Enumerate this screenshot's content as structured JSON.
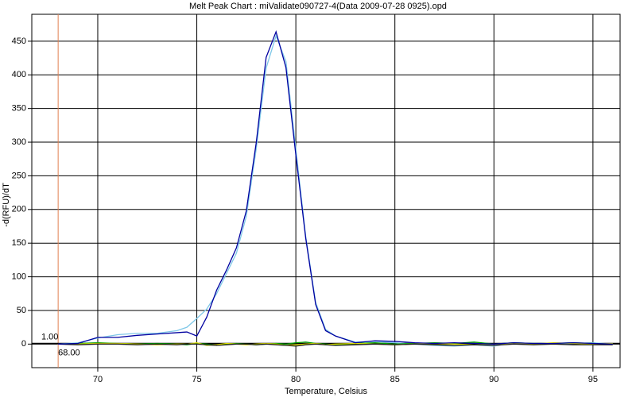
{
  "chart_data": {
    "type": "line",
    "title": "Melt Peak Chart : miValidate090727-4(Data 2009-07-28 0925).opd",
    "x_label": "Temperature, Celsius",
    "y_label": "-d(RFU)/dT",
    "x": [
      68,
      69,
      70,
      71,
      72,
      73,
      74,
      74.5,
      75,
      75.5,
      76,
      76.5,
      77,
      77.5,
      78,
      78.5,
      79,
      79.5,
      80,
      80.5,
      81,
      81.5,
      82,
      83,
      84,
      85,
      86,
      87,
      88,
      89,
      90,
      91,
      92,
      93,
      94,
      95,
      96
    ],
    "series": [
      {
        "color": "#7fc8e8",
        "values": [
          0,
          2,
          9,
          14,
          16,
          16,
          20,
          25,
          38,
          52,
          75,
          105,
          135,
          190,
          290,
          410,
          458,
          420,
          290,
          160,
          62,
          22,
          12,
          3,
          4,
          2,
          0,
          -2,
          -3,
          -1,
          -3,
          2,
          1,
          0,
          1,
          2,
          0
        ]
      },
      {
        "color": "#00a000",
        "values": [
          0,
          1,
          2,
          1,
          0,
          1,
          0,
          -1,
          1,
          0,
          -2,
          0,
          1,
          0,
          -1,
          0,
          1,
          0,
          2,
          3,
          1,
          0,
          -1,
          1,
          2,
          0,
          1,
          2,
          1,
          3,
          0,
          2,
          1,
          1,
          2,
          1,
          0
        ]
      },
      {
        "color": "#e0e000",
        "values": [
          0,
          0,
          1,
          1,
          0,
          -1,
          0,
          0,
          2,
          -2,
          -1,
          1,
          0,
          -1,
          0,
          1,
          0,
          -2,
          -1,
          0,
          1,
          -1,
          0,
          1,
          0,
          -1,
          0,
          1,
          0,
          -1,
          0,
          1,
          0,
          2,
          1,
          0,
          1
        ]
      },
      {
        "color": "#202020",
        "values": [
          0,
          -1,
          0,
          0,
          -1,
          0,
          -1,
          0,
          0,
          -1,
          -2,
          -1,
          0,
          0,
          -1,
          0,
          -1,
          -2,
          -3,
          -1,
          0,
          -1,
          -2,
          -1,
          0,
          -1,
          0,
          -1,
          -2,
          -1,
          -2,
          0,
          -1,
          0,
          -1,
          -1,
          -1
        ]
      },
      {
        "color": "#0000a0",
        "values": [
          0,
          1,
          10,
          10,
          13,
          15,
          17,
          18,
          12,
          40,
          80,
          110,
          143,
          198,
          299,
          426,
          464,
          411,
          281,
          157,
          59,
          20,
          12,
          2,
          5,
          4,
          2,
          1,
          2,
          1,
          0,
          2,
          1,
          1,
          2,
          1,
          0
        ]
      }
    ],
    "xlim": [
      66.67,
      96.37
    ],
    "ylim": [
      -35,
      490
    ],
    "xticks": [
      70,
      75,
      80,
      85,
      90,
      95
    ],
    "yticks": [
      0,
      50,
      100,
      150,
      200,
      250,
      300,
      350,
      400,
      450
    ],
    "grid": true,
    "threshold_y": {
      "value": 1,
      "label": "1.00",
      "color": "#000000"
    },
    "threshold_x": {
      "value": 68,
      "label": "68.00",
      "color": "#e08050"
    }
  }
}
